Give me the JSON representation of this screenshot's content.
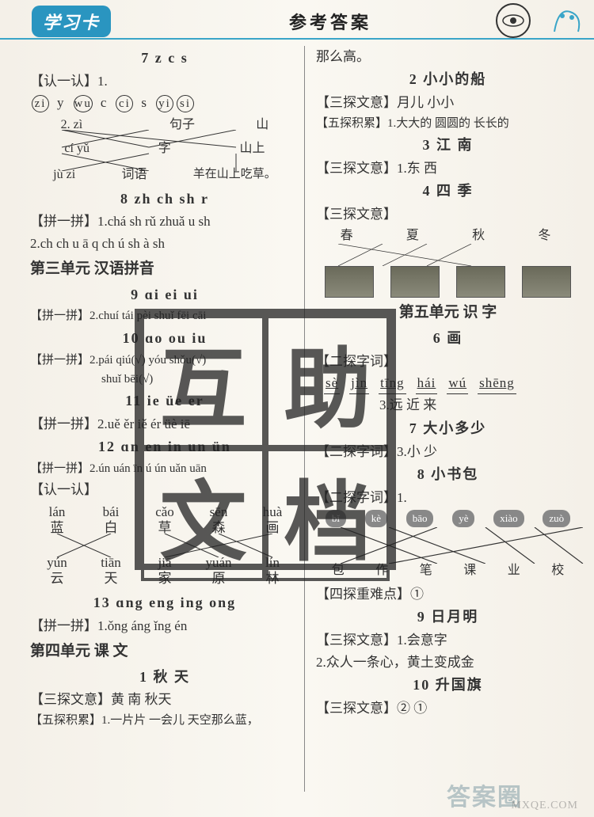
{
  "header": {
    "logo": "学习卡",
    "title": "参考答案"
  },
  "left": {
    "s7": {
      "title": "7  z c s"
    },
    "ren1_label": "【认一认】1.",
    "ren1_items": [
      "zi",
      "y",
      "wu",
      "c",
      "ci",
      "s",
      "yi",
      "si"
    ],
    "ren1_circled": [
      true,
      false,
      true,
      false,
      true,
      false,
      true,
      true
    ],
    "q2_top": [
      "zì",
      "句子",
      "山"
    ],
    "q2_mid": [
      "cí yǔ",
      "字",
      "山上"
    ],
    "q2_bot": [
      "jù zi",
      "词语",
      "羊在山上吃草。"
    ],
    "s8": {
      "title": "8  zh ch sh r"
    },
    "pin8_1": "【拼一拼】1.chá  sh  rǔ  zhuǎ  u  sh",
    "pin8_2": "2.ch  ch  u ā  q  ch ú  sh  à  sh",
    "unit3": "第三单元  汉语拼音",
    "s9": {
      "title": "9  ɑi ei ui"
    },
    "pin9": "【拼一拼】2.chuí  tái  pèi  shuǐ fēi cāi",
    "s10": {
      "title": "10  ɑo ou iu"
    },
    "pin10a": "【拼一拼】2.pái  qiú(√)  yóu  shǒu(√)",
    "pin10b": "shuǐ  bēi(√)",
    "s11": {
      "title": "11  ie üe er"
    },
    "pin11": "【拼一拼】2.uě  ěr  iě  ér  üè  iē",
    "s12": {
      "title": "12  ɑn en in un ün"
    },
    "pin12": "【拼一拼】2.ún  uán  īn ú  ún  uǎn uān",
    "ren2_label": "【认一认】",
    "match_top_py": [
      "lán",
      "bái",
      "cǎo",
      "sēn",
      "huà"
    ],
    "match_top_hz": [
      "蓝",
      "白",
      "草",
      "森",
      "画"
    ],
    "match_bot_py": [
      "yún",
      "tiān",
      "jiā",
      "yuán",
      "lín"
    ],
    "match_bot_hz": [
      "云",
      "天",
      "家",
      "原",
      "林"
    ],
    "s13": {
      "title": "13  ɑng eng ing ong"
    },
    "pin13": "【拼一拼】1.ǒng  áng  ǐng  én",
    "unit4": "第四单元  课 文",
    "s_qiu": {
      "title": "1 秋 天"
    },
    "qiu1": "【三探文意】黄  南  秋天",
    "qiu2": "【五探积累】1.一片片  一会儿  天空那么蓝，"
  },
  "right": {
    "cont": "那么高。",
    "s2": {
      "title": "2 小小的船"
    },
    "r2a": "【三探文意】月儿  小小",
    "r2b": "【五探积累】1.大大的  圆圆的  长长的",
    "s3": {
      "title": "3 江 南"
    },
    "r3": "【三探文意】1.东  西",
    "s4": {
      "title": "4 四 季"
    },
    "r4_label": "【三探文意】",
    "seasons": [
      "春",
      "夏",
      "秋",
      "冬"
    ],
    "unit5": "第五单元  识 字",
    "s6": {
      "title": "6 画"
    },
    "r6_label": "【二探字词】",
    "r6_py": [
      "sè",
      "jìn",
      "tīng",
      "hái",
      "wú",
      "shēng"
    ],
    "r6_2": "3.远  近  来",
    "s7": {
      "title": "7 大小多少"
    },
    "r7": "【二探字词】3.小 少",
    "s8": {
      "title": "8 小书包"
    },
    "r8_label": "【二探字词】1.",
    "pills": [
      "bǐ",
      "kè",
      "bāo",
      "yè",
      "xiào",
      "zuò"
    ],
    "r8_bot": [
      "包",
      "作",
      "笔",
      "课",
      "业",
      "校"
    ],
    "r8_2": "【四探重难点】①",
    "s9": {
      "title": "9 日月明"
    },
    "r9a": "【三探文意】1.会意字",
    "r9b": "2.众人一条心，黄土变成金",
    "s10": {
      "title": "10 升国旗"
    },
    "r10": "【三探文意】② ①"
  },
  "watermark_chars": [
    "互",
    "助",
    "文",
    "档"
  ],
  "footer": {
    "wm1": "答案圈",
    "wm2": "MXQE.COM"
  },
  "colors": {
    "accent": "#2a95c0",
    "border": "#3aa5c8",
    "text": "#333333",
    "bg": "#f4f0e8"
  }
}
